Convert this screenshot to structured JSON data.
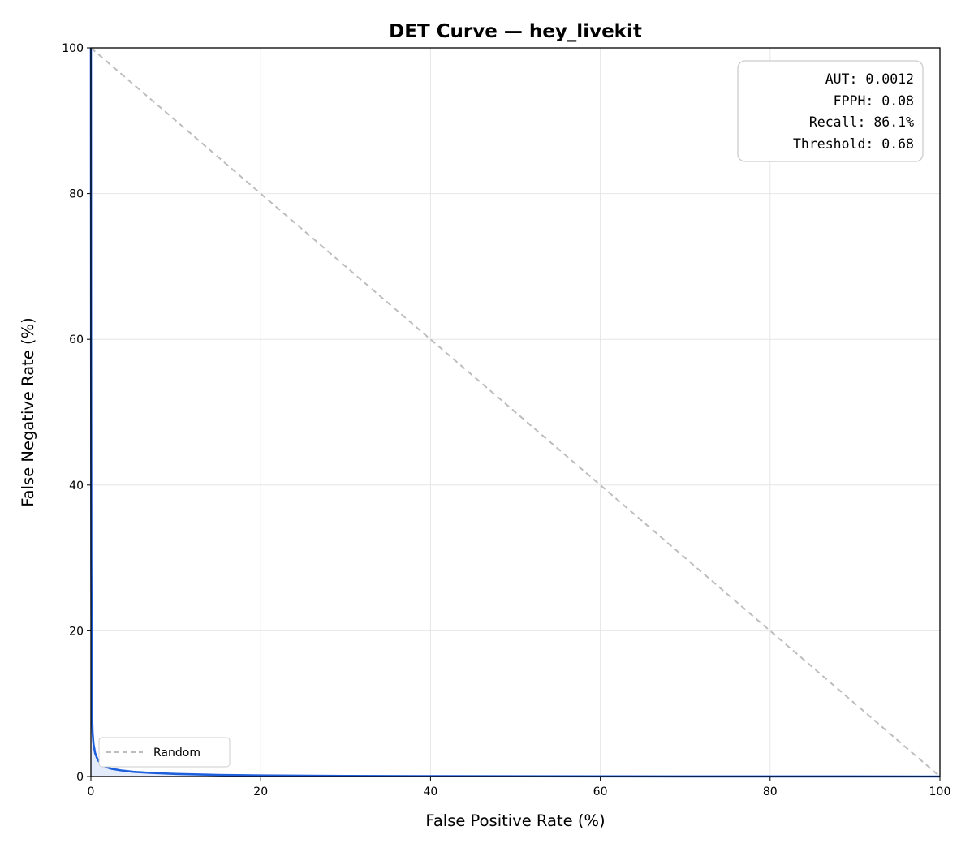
{
  "chart_data": {
    "type": "line",
    "title": "DET Curve — hey_livekit",
    "xlabel": "False Positive Rate (%)",
    "ylabel": "False Negative Rate (%)",
    "xlim": [
      0,
      100
    ],
    "ylim": [
      0,
      100
    ],
    "xticks": [
      0,
      20,
      40,
      60,
      80,
      100
    ],
    "yticks": [
      0,
      20,
      40,
      60,
      80,
      100
    ],
    "x_tick_labels": [
      "0",
      "20",
      "40",
      "60",
      "80",
      "100"
    ],
    "y_tick_labels": [
      "0",
      "20",
      "40",
      "60",
      "80",
      "100"
    ],
    "grid": true,
    "legend_position": "lower-left",
    "series": [
      {
        "color": "#1f5fdb",
        "fill": true,
        "x": [
          0,
          0.02,
          0.05,
          0.1,
          0.15,
          0.2,
          0.3,
          0.5,
          0.8,
          1.2,
          1.8,
          2.5,
          3.5,
          5,
          7,
          10,
          15,
          20,
          30,
          40,
          50,
          60,
          70,
          80,
          90,
          100
        ],
        "y": [
          100,
          60,
          30,
          13.9,
          8,
          6,
          4.5,
          3.2,
          2.3,
          1.7,
          1.3,
          1.05,
          0.85,
          0.65,
          0.5,
          0.35,
          0.22,
          0.15,
          0.08,
          0.05,
          0.03,
          0.02,
          0.01,
          0.005,
          0.002,
          0
        ]
      },
      {
        "name": "Random",
        "color": "#bdbdbd",
        "dashed": true,
        "x": [
          0,
          100
        ],
        "y": [
          100,
          0
        ]
      }
    ],
    "metrics": [
      "AUT: 0.0012",
      "FPPH: 0.08",
      "Recall: 86.1%",
      "Threshold: 0.68"
    ]
  }
}
